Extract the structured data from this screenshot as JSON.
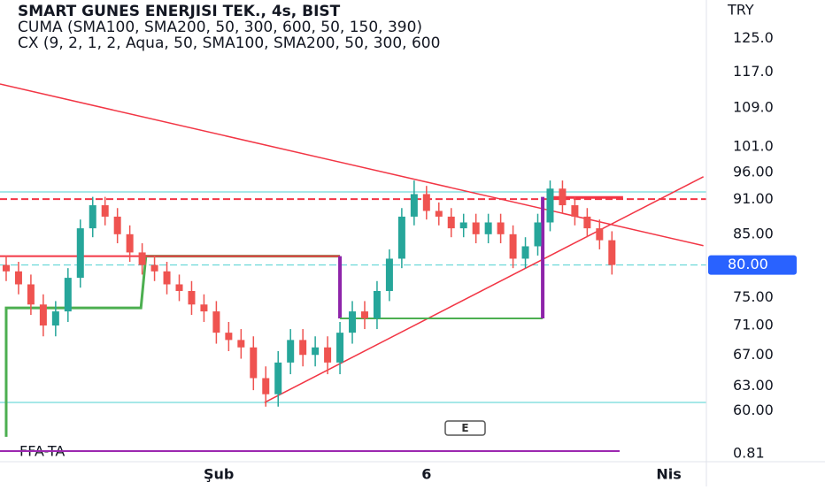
{
  "chart_data": {
    "type": "candlestick",
    "title": "SMART GUNES ENERJISI TEK., 4s, BIST",
    "indicator_1": "CUMA (SMA100, SMA200, 50, 300, 600, 50, 150, 390)",
    "indicator_2": "CX (9, 2, 1, 2, Aqua, 50, SMA100, SMA200, 50, 300, 600",
    "currency": "TRY",
    "log_scale": true,
    "ylim": [
      56.4,
      134.9
    ],
    "yticks": [
      {
        "value": 125,
        "label": "125.0"
      },
      {
        "value": 117,
        "label": "117.0"
      },
      {
        "value": 109,
        "label": "109.0"
      },
      {
        "value": 101,
        "label": "101.0"
      },
      {
        "value": 96,
        "label": "96.00"
      },
      {
        "value": 91,
        "label": "91.00"
      },
      {
        "value": 85,
        "label": "85.00"
      },
      {
        "value": 75,
        "label": "75.00"
      },
      {
        "value": 71,
        "label": "71.00"
      },
      {
        "value": 67,
        "label": "67.00"
      },
      {
        "value": 63,
        "label": "63.00"
      },
      {
        "value": 60,
        "label": "60.00"
      }
    ],
    "xlim": [
      0,
      57.14
    ],
    "xticks": [
      {
        "value": 17.7,
        "label": "Şub"
      },
      {
        "value": 34.5,
        "label": "6"
      },
      {
        "value": 54.1,
        "label": "Nis"
      }
    ],
    "last_price": {
      "value": 80,
      "label": "80.00"
    },
    "up_color": "#26a69a",
    "down_color": "#ef5350",
    "ohlc": [
      [
        80,
        81.5,
        77.5,
        79
      ],
      [
        79,
        80.5,
        75.5,
        77
      ],
      [
        77,
        78.5,
        72.5,
        74
      ],
      [
        74,
        75.5,
        69.5,
        71
      ],
      [
        71,
        74.5,
        69.5,
        73
      ],
      [
        73,
        79.5,
        71.5,
        78
      ],
      [
        78,
        87.5,
        76.5,
        86
      ],
      [
        86,
        91.5,
        84.5,
        90
      ],
      [
        90,
        91.5,
        86.5,
        88
      ],
      [
        88,
        89.5,
        83.5,
        85
      ],
      [
        85,
        86.5,
        80.5,
        82
      ],
      [
        82,
        83.5,
        78.5,
        80
      ],
      [
        80,
        81.5,
        77.5,
        79
      ],
      [
        79,
        80.5,
        75.5,
        77
      ],
      [
        77,
        78.5,
        74.5,
        76
      ],
      [
        76,
        77.5,
        72.5,
        74
      ],
      [
        74,
        75.5,
        71.5,
        73
      ],
      [
        73,
        74.5,
        68.5,
        70
      ],
      [
        70,
        71.5,
        67.5,
        69
      ],
      [
        69,
        70.5,
        66.5,
        68
      ],
      [
        68,
        69.5,
        62.5,
        64
      ],
      [
        64,
        65.5,
        60.5,
        62
      ],
      [
        62,
        67.5,
        60.5,
        66
      ],
      [
        66,
        70.5,
        64.5,
        69
      ],
      [
        69,
        70.5,
        65.5,
        67
      ],
      [
        67,
        69.5,
        65.5,
        68
      ],
      [
        68,
        69.5,
        64.5,
        66
      ],
      [
        66,
        71.5,
        64.5,
        70
      ],
      [
        70,
        74.5,
        68.5,
        73
      ],
      [
        73,
        74.5,
        70.5,
        72
      ],
      [
        72,
        77.5,
        70.5,
        76
      ],
      [
        76,
        82.5,
        74.5,
        81
      ],
      [
        81,
        89.5,
        79.5,
        88
      ],
      [
        88,
        94.5,
        86.5,
        92
      ],
      [
        92,
        93.5,
        87.5,
        89
      ],
      [
        89,
        90.5,
        86.5,
        88
      ],
      [
        88,
        89.5,
        84.5,
        86
      ],
      [
        86,
        88.5,
        84.5,
        87
      ],
      [
        87,
        88.5,
        83.5,
        85
      ],
      [
        85,
        88.5,
        83.5,
        87
      ],
      [
        87,
        88.5,
        83.5,
        85
      ],
      [
        85,
        86.5,
        79.5,
        81
      ],
      [
        81,
        84.5,
        79.5,
        83
      ],
      [
        83,
        88.5,
        81.5,
        87
      ],
      [
        87,
        94.5,
        85.5,
        93
      ],
      [
        93,
        94.5,
        88.5,
        90
      ],
      [
        90,
        91.5,
        86.5,
        88
      ],
      [
        88,
        89.5,
        84.5,
        86
      ],
      [
        86,
        87.5,
        82.5,
        84
      ],
      [
        84,
        85.5,
        78.5,
        80
      ]
    ],
    "lines": [
      {
        "x": [
          0,
          57.14
        ],
        "y": [
          92.4,
          92.4
        ],
        "color": "#4dd0d0",
        "width": 1
      },
      {
        "x": [
          0,
          57.14
        ],
        "y": [
          80,
          80
        ],
        "color": "#4dd0d0",
        "width": 1,
        "dash": true
      },
      {
        "x": [
          0,
          57.14
        ],
        "y": [
          61.0,
          61.0
        ],
        "color": "#4dd0d0",
        "width": 1
      },
      {
        "x": [
          0,
          57.14
        ],
        "y": [
          91.1,
          91.1
        ],
        "color": "#f23645",
        "width": 2,
        "dash": true
      },
      {
        "x": [
          44.6,
          50.4
        ],
        "y": [
          91.4,
          91.4
        ],
        "color": "#f23645",
        "width": 3
      },
      {
        "x": [
          0,
          56.9
        ],
        "y": [
          114.3,
          83.1
        ],
        "color": "#f23645",
        "width": 1.5
      },
      {
        "x": [
          21.4,
          56.9
        ],
        "y": [
          61.0,
          95.2
        ],
        "color": "#f23645",
        "width": 1.5
      },
      {
        "x": [
          0.5,
          0.5,
          11.4,
          11.4,
          11.8,
          11.8,
          27.5
        ],
        "y": [
          57,
          73.5,
          73.5,
          73.5,
          81.4,
          81.4,
          81.4
        ],
        "color": "#4caf50",
        "width": 3
      },
      {
        "x": [
          0,
          11.8,
          11.8,
          27.5
        ],
        "y": [
          81.4,
          81.4,
          81.4,
          81.4
        ],
        "color": "#f23645",
        "width": 2
      },
      {
        "x": [
          27.5,
          27.5
        ],
        "y": [
          81.4,
          72.0
        ],
        "color": "#8e24aa",
        "width": 4
      },
      {
        "x": [
          27.5,
          43.9
        ],
        "y": [
          72.0,
          72.0
        ],
        "color": "#4caf50",
        "width": 2
      },
      {
        "x": [
          43.9,
          43.9
        ],
        "y": [
          72.0,
          91.5
        ],
        "color": "#8e24aa",
        "width": 4
      }
    ],
    "marker": "E",
    "lower_pane": {
      "label": "FFA-TA",
      "tick": 0.81,
      "color": "#9c27b0"
    }
  }
}
